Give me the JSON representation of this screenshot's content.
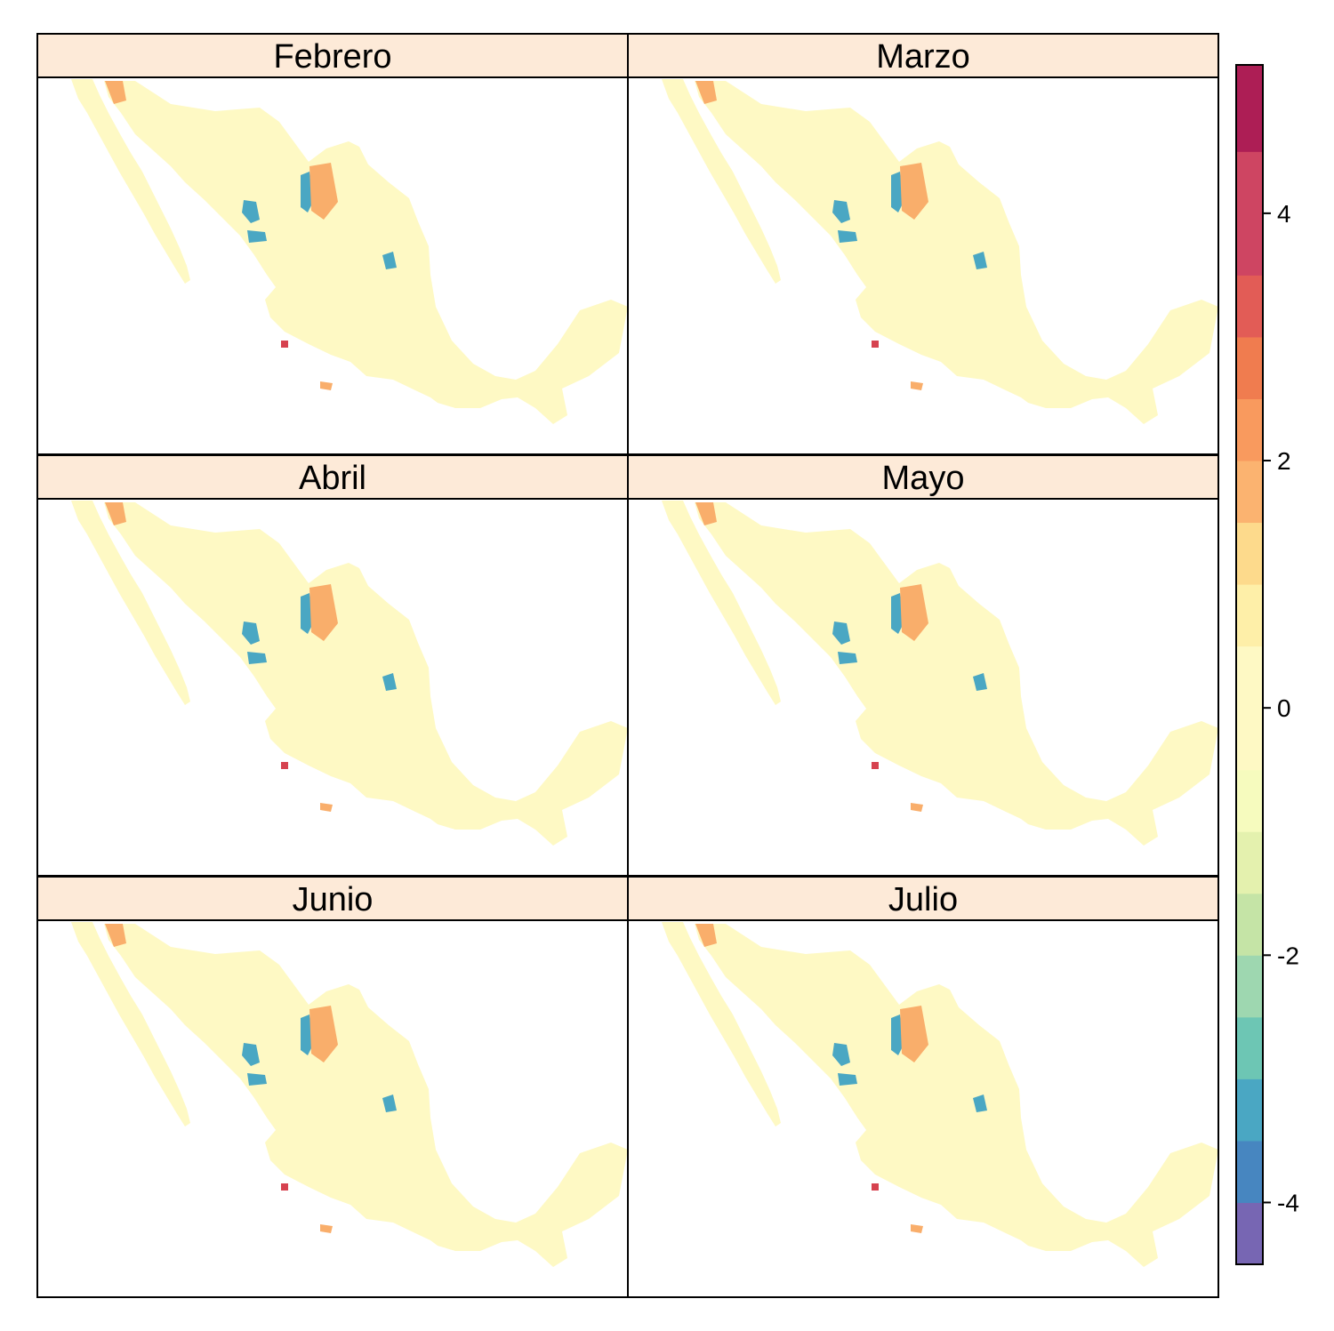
{
  "figure": {
    "strip_color": "#FDEAD8",
    "map_colors": {
      "light": "#FEF9C4",
      "mid": "#E4F1AE",
      "low": "#C5E4A6",
      "lower": "#9ED7B0",
      "teal": "#6DC6B4",
      "blue": "#4AA7C3",
      "orange": "#F9AE6B",
      "red": "#D6424F"
    }
  },
  "panels": [
    {
      "label": "Febrero"
    },
    {
      "label": "Marzo"
    },
    {
      "label": "Abril"
    },
    {
      "label": "Mayo"
    },
    {
      "label": "Junio"
    },
    {
      "label": "Julio"
    }
  ],
  "colorkey": {
    "colors": [
      "#7766B3",
      "#4786C0",
      "#4AA7C3",
      "#6DC6B4",
      "#9ED7B0",
      "#C5E4A6",
      "#E4F1AE",
      "#F6FBBE",
      "#FEF9C4",
      "#FEEFA8",
      "#FDDA8C",
      "#FBB370",
      "#F99A5E",
      "#F07C4F",
      "#E25C56",
      "#CE4562",
      "#AD1E55"
    ],
    "range": [
      -4.5,
      5.2
    ],
    "breaks": [
      -4.5,
      -4.0,
      -3.5,
      -3.0,
      -2.5,
      -2.0,
      -1.5,
      -1.0,
      -0.5,
      0.5,
      1.0,
      1.5,
      2.0,
      2.5,
      3.0,
      3.5,
      4.5,
      5.2
    ],
    "ticks": [
      {
        "value": -4,
        "label": "-4"
      },
      {
        "value": -2,
        "label": "-2"
      },
      {
        "value": 0,
        "label": "0"
      },
      {
        "value": 2,
        "label": "2"
      },
      {
        "value": 4,
        "label": "4"
      }
    ]
  }
}
